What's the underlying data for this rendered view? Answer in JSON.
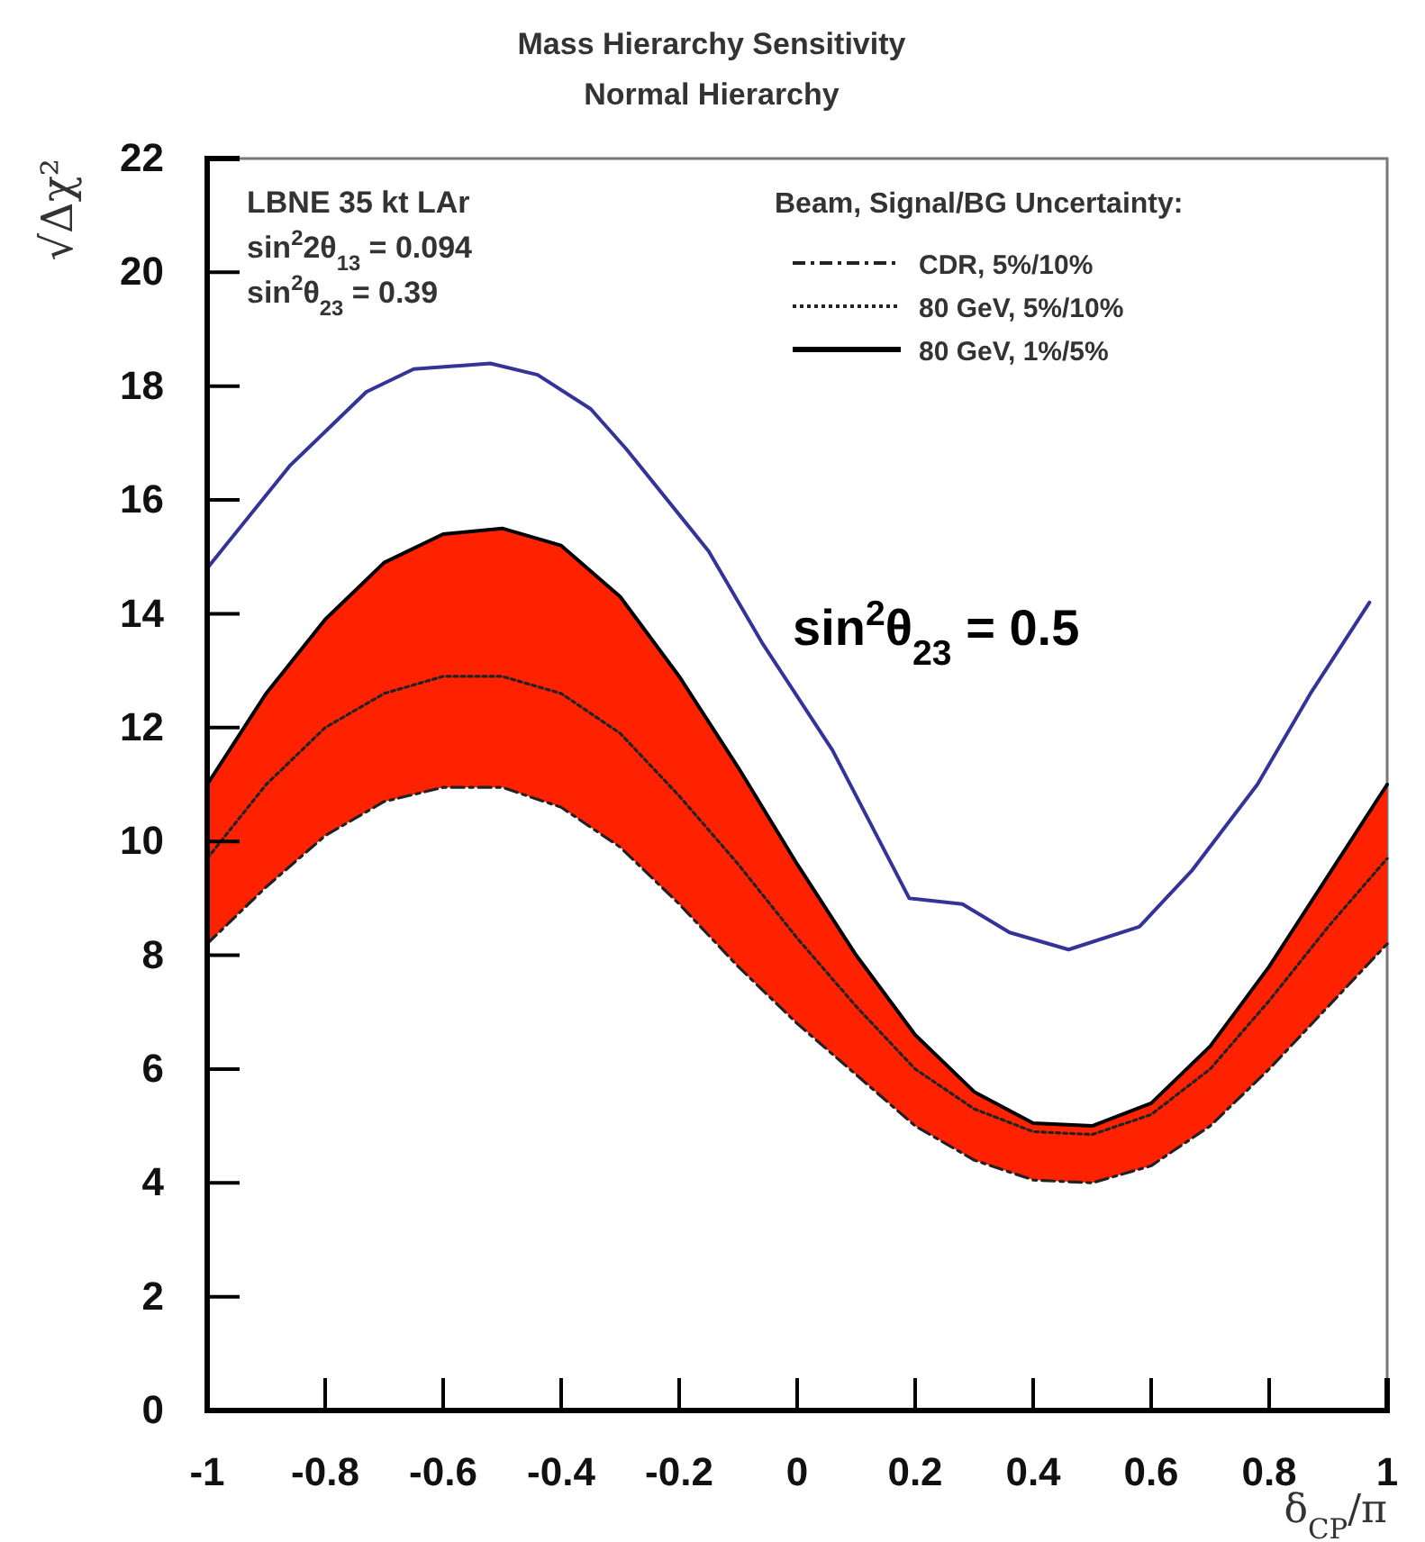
{
  "chart_data": {
    "type": "line",
    "title": "Mass Hierarchy Sensitivity",
    "subtitle": "Normal Hierarchy",
    "xlabel": "δ$_{CP}$/π",
    "ylabel": "√Δχ²",
    "legend_title": "Beam, Signal/BG Uncertainty:",
    "legend": "top right",
    "grid": false,
    "marker": "none",
    "x": [
      -1,
      -0.9,
      -0.8,
      -0.7,
      -0.6,
      -0.5,
      -0.4,
      -0.3,
      -0.2,
      -0.1,
      0,
      0.1,
      0.2,
      0.3,
      0.4,
      0.5,
      0.6,
      0.7,
      0.8,
      0.9,
      1
    ],
    "xlim": [
      -1,
      1
    ],
    "ylim": [
      0,
      22
    ],
    "xticks": [
      -1,
      -0.8,
      -0.6,
      -0.4,
      -0.2,
      0,
      0.2,
      0.4,
      0.6,
      0.8,
      1
    ],
    "yticks": [
      0,
      2,
      4,
      6,
      8,
      10,
      12,
      14,
      16,
      18,
      20,
      22
    ],
    "series": [
      {
        "name": "CDR, 5%/10%",
        "color": "#222222",
        "line_style": "dashed",
        "values": [
          8.2,
          9.2,
          10.1,
          10.7,
          10.95,
          10.95,
          10.6,
          9.9,
          8.9,
          7.8,
          6.8,
          5.9,
          5.0,
          4.4,
          4.05,
          4.0,
          4.3,
          5.0,
          6.0,
          7.1,
          8.2
        ]
      },
      {
        "name": "80 GeV, 5%/10%",
        "color": "#222222",
        "line_style": "dotted",
        "lower": [
          8.2,
          9.2,
          10.1,
          10.7,
          10.95,
          10.95,
          10.6,
          9.9,
          8.9,
          7.8,
          6.8,
          5.9,
          5.0,
          4.4,
          4.05,
          4.0,
          4.3,
          5.0,
          6.0,
          7.1,
          8.2
        ],
        "upper": [
          11.0,
          12.6,
          13.9,
          14.9,
          15.4,
          15.5,
          15.2,
          14.3,
          12.9,
          11.3,
          9.6,
          8.0,
          6.6,
          5.6,
          5.05,
          5.0,
          5.4,
          6.4,
          7.8,
          9.4,
          11.0
        ],
        "values": [
          9.7,
          11.0,
          12.0,
          12.6,
          12.9,
          12.9,
          12.6,
          11.9,
          10.8,
          9.6,
          8.3,
          7.1,
          6.0,
          5.3,
          4.9,
          4.85,
          5.2,
          6.0,
          7.2,
          8.5,
          9.7
        ]
      },
      {
        "name": "80 GeV, 1%/5%",
        "color": "#000000",
        "line_style": "solid",
        "values": [
          11.0,
          12.6,
          13.9,
          14.9,
          15.4,
          15.5,
          15.2,
          14.3,
          12.9,
          11.3,
          9.6,
          8.0,
          6.6,
          5.6,
          5.05,
          5.0,
          5.4,
          6.4,
          7.8,
          9.4,
          11.0
        ]
      },
      {
        "color": "#333399",
        "line_style": "solid",
        "x": [
          -1,
          -0.86,
          -0.73,
          -0.65,
          -0.52,
          -0.44,
          -0.35,
          -0.29,
          -0.15,
          -0.06,
          0.06,
          0.19,
          0.28,
          0.36,
          0.46,
          0.58,
          0.67,
          0.78,
          0.87,
          0.97
        ],
        "values": [
          14.8,
          16.6,
          17.9,
          18.3,
          18.4,
          18.2,
          17.6,
          16.9,
          15.1,
          13.5,
          11.6,
          9.0,
          8.9,
          8.4,
          8.1,
          8.5,
          9.5,
          11.0,
          12.6,
          14.2
        ]
      }
    ],
    "annotations": [
      "LBNE 35 kt LAr",
      "sin$^{2}$2θ$_{13}$ = 0.094",
      "sin$^{2}$θ$_{23}$ = 0.39",
      "sin$^{2}$θ$_{23}$ = 0.5"
    ]
  }
}
